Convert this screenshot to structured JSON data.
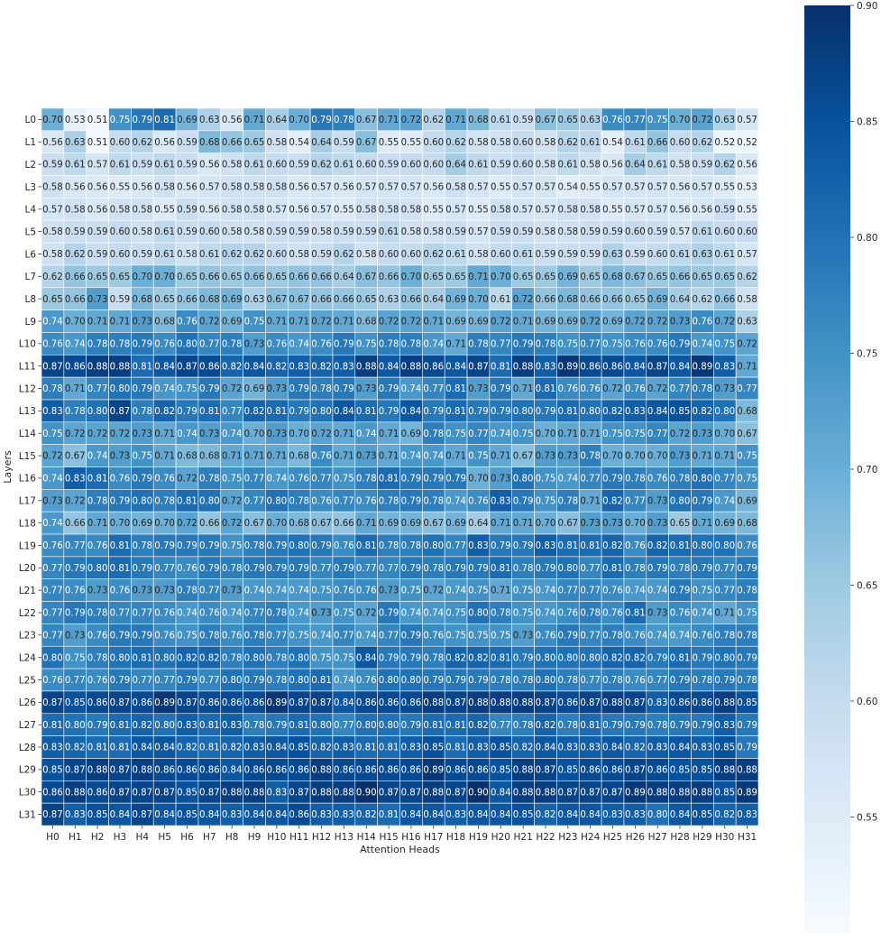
{
  "chart_data": {
    "type": "heatmap",
    "title": "",
    "xlabel": "Attention Heads",
    "ylabel": "Layers",
    "x_categories": [
      "H0",
      "H1",
      "H2",
      "H3",
      "H4",
      "H5",
      "H6",
      "H7",
      "H8",
      "H9",
      "H10",
      "H11",
      "H12",
      "H13",
      "H14",
      "H15",
      "H16",
      "H17",
      "H18",
      "H19",
      "H20",
      "H21",
      "H22",
      "H23",
      "H24",
      "H25",
      "H26",
      "H27",
      "H28",
      "H29",
      "H30",
      "H31"
    ],
    "y_categories": [
      "L0",
      "L1",
      "L2",
      "L3",
      "L4",
      "L5",
      "L6",
      "L7",
      "L8",
      "L9",
      "L10",
      "L11",
      "L12",
      "L13",
      "L14",
      "L15",
      "L16",
      "L17",
      "L18",
      "L19",
      "L20",
      "L21",
      "L22",
      "L23",
      "L24",
      "L25",
      "L26",
      "L27",
      "L28",
      "L29",
      "L30",
      "L31"
    ],
    "values": [
      [
        0.7,
        0.53,
        0.51,
        0.75,
        0.79,
        0.81,
        0.69,
        0.63,
        0.56,
        0.71,
        0.64,
        0.7,
        0.79,
        0.78,
        0.67,
        0.71,
        0.72,
        0.62,
        0.71,
        0.68,
        0.61,
        0.59,
        0.67,
        0.65,
        0.63,
        0.76,
        0.77,
        0.75,
        0.7,
        0.72,
        0.63,
        0.57
      ],
      [
        0.56,
        0.63,
        0.51,
        0.6,
        0.62,
        0.56,
        0.59,
        0.68,
        0.66,
        0.65,
        0.58,
        0.54,
        0.64,
        0.59,
        0.67,
        0.55,
        0.55,
        0.6,
        0.62,
        0.58,
        0.58,
        0.6,
        0.58,
        0.62,
        0.61,
        0.54,
        0.61,
        0.66,
        0.6,
        0.62,
        0.52,
        0.52
      ],
      [
        0.59,
        0.61,
        0.57,
        0.61,
        0.59,
        0.61,
        0.59,
        0.56,
        0.58,
        0.61,
        0.6,
        0.59,
        0.62,
        0.61,
        0.6,
        0.59,
        0.6,
        0.6,
        0.64,
        0.61,
        0.59,
        0.6,
        0.58,
        0.61,
        0.58,
        0.56,
        0.64,
        0.61,
        0.58,
        0.59,
        0.62,
        0.56
      ],
      [
        0.58,
        0.56,
        0.56,
        0.55,
        0.56,
        0.58,
        0.56,
        0.57,
        0.58,
        0.58,
        0.58,
        0.56,
        0.57,
        0.56,
        0.57,
        0.57,
        0.57,
        0.56,
        0.58,
        0.57,
        0.55,
        0.57,
        0.57,
        0.54,
        0.55,
        0.57,
        0.57,
        0.57,
        0.56,
        0.57,
        0.55,
        0.53
      ],
      [
        0.57,
        0.58,
        0.56,
        0.58,
        0.58,
        0.55,
        0.59,
        0.56,
        0.58,
        0.58,
        0.57,
        0.56,
        0.57,
        0.55,
        0.58,
        0.58,
        0.58,
        0.55,
        0.57,
        0.55,
        0.58,
        0.57,
        0.57,
        0.58,
        0.58,
        0.55,
        0.57,
        0.57,
        0.56,
        0.56,
        0.59,
        0.55
      ],
      [
        0.58,
        0.59,
        0.59,
        0.6,
        0.58,
        0.61,
        0.59,
        0.6,
        0.58,
        0.58,
        0.59,
        0.59,
        0.58,
        0.59,
        0.59,
        0.61,
        0.58,
        0.58,
        0.59,
        0.57,
        0.59,
        0.59,
        0.58,
        0.58,
        0.59,
        0.59,
        0.6,
        0.59,
        0.57,
        0.61,
        0.6,
        0.6
      ],
      [
        0.58,
        0.62,
        0.59,
        0.6,
        0.59,
        0.61,
        0.58,
        0.61,
        0.62,
        0.62,
        0.6,
        0.58,
        0.59,
        0.62,
        0.58,
        0.6,
        0.6,
        0.62,
        0.61,
        0.58,
        0.6,
        0.61,
        0.59,
        0.59,
        0.59,
        0.63,
        0.59,
        0.6,
        0.61,
        0.63,
        0.61,
        0.57
      ],
      [
        0.62,
        0.66,
        0.65,
        0.65,
        0.7,
        0.7,
        0.65,
        0.66,
        0.65,
        0.66,
        0.65,
        0.66,
        0.66,
        0.64,
        0.67,
        0.66,
        0.7,
        0.65,
        0.65,
        0.71,
        0.7,
        0.65,
        0.65,
        0.69,
        0.65,
        0.68,
        0.67,
        0.65,
        0.66,
        0.65,
        0.65,
        0.62
      ],
      [
        0.65,
        0.66,
        0.73,
        0.59,
        0.68,
        0.65,
        0.66,
        0.68,
        0.69,
        0.63,
        0.67,
        0.67,
        0.66,
        0.66,
        0.65,
        0.63,
        0.66,
        0.64,
        0.69,
        0.7,
        0.61,
        0.72,
        0.66,
        0.68,
        0.66,
        0.66,
        0.65,
        0.69,
        0.64,
        0.62,
        0.66,
        0.58
      ],
      [
        0.74,
        0.7,
        0.71,
        0.71,
        0.73,
        0.68,
        0.76,
        0.72,
        0.69,
        0.75,
        0.71,
        0.71,
        0.72,
        0.71,
        0.68,
        0.72,
        0.72,
        0.71,
        0.69,
        0.69,
        0.72,
        0.71,
        0.69,
        0.69,
        0.72,
        0.69,
        0.72,
        0.72,
        0.73,
        0.76,
        0.72,
        0.63
      ],
      [
        0.76,
        0.74,
        0.78,
        0.78,
        0.79,
        0.76,
        0.8,
        0.77,
        0.78,
        0.73,
        0.76,
        0.74,
        0.76,
        0.79,
        0.75,
        0.78,
        0.78,
        0.74,
        0.71,
        0.78,
        0.77,
        0.79,
        0.78,
        0.75,
        0.77,
        0.75,
        0.76,
        0.76,
        0.79,
        0.74,
        0.75,
        0.72
      ],
      [
        0.87,
        0.86,
        0.88,
        0.88,
        0.81,
        0.84,
        0.87,
        0.86,
        0.82,
        0.84,
        0.82,
        0.83,
        0.82,
        0.83,
        0.88,
        0.84,
        0.88,
        0.86,
        0.84,
        0.87,
        0.81,
        0.88,
        0.83,
        0.89,
        0.86,
        0.86,
        0.84,
        0.87,
        0.84,
        0.89,
        0.83,
        0.71
      ],
      [
        0.78,
        0.71,
        0.77,
        0.8,
        0.79,
        0.74,
        0.75,
        0.79,
        0.72,
        0.69,
        0.73,
        0.79,
        0.78,
        0.79,
        0.73,
        0.79,
        0.74,
        0.77,
        0.81,
        0.73,
        0.79,
        0.71,
        0.81,
        0.76,
        0.76,
        0.72,
        0.76,
        0.72,
        0.77,
        0.78,
        0.73,
        0.77
      ],
      [
        0.83,
        0.78,
        0.8,
        0.87,
        0.78,
        0.82,
        0.79,
        0.81,
        0.77,
        0.82,
        0.81,
        0.79,
        0.8,
        0.84,
        0.81,
        0.79,
        0.84,
        0.79,
        0.81,
        0.79,
        0.79,
        0.8,
        0.79,
        0.81,
        0.8,
        0.82,
        0.83,
        0.84,
        0.85,
        0.82,
        0.8,
        0.68
      ],
      [
        0.75,
        0.72,
        0.72,
        0.72,
        0.73,
        0.71,
        0.74,
        0.73,
        0.74,
        0.7,
        0.73,
        0.7,
        0.72,
        0.71,
        0.74,
        0.71,
        0.69,
        0.78,
        0.75,
        0.77,
        0.74,
        0.75,
        0.7,
        0.71,
        0.71,
        0.75,
        0.75,
        0.77,
        0.72,
        0.73,
        0.7,
        0.67
      ],
      [
        0.72,
        0.67,
        0.74,
        0.73,
        0.75,
        0.71,
        0.68,
        0.68,
        0.71,
        0.71,
        0.71,
        0.68,
        0.76,
        0.71,
        0.73,
        0.71,
        0.74,
        0.74,
        0.71,
        0.75,
        0.71,
        0.67,
        0.73,
        0.73,
        0.78,
        0.7,
        0.7,
        0.7,
        0.73,
        0.71,
        0.71,
        0.75
      ],
      [
        0.74,
        0.83,
        0.81,
        0.76,
        0.79,
        0.76,
        0.72,
        0.78,
        0.75,
        0.77,
        0.74,
        0.76,
        0.77,
        0.75,
        0.78,
        0.81,
        0.79,
        0.79,
        0.79,
        0.7,
        0.73,
        0.8,
        0.75,
        0.74,
        0.77,
        0.79,
        0.78,
        0.76,
        0.78,
        0.8,
        0.77,
        0.75
      ],
      [
        0.73,
        0.72,
        0.78,
        0.79,
        0.8,
        0.78,
        0.81,
        0.8,
        0.72,
        0.77,
        0.8,
        0.78,
        0.76,
        0.77,
        0.76,
        0.78,
        0.79,
        0.78,
        0.74,
        0.76,
        0.83,
        0.79,
        0.75,
        0.78,
        0.71,
        0.82,
        0.77,
        0.73,
        0.8,
        0.79,
        0.74,
        0.69
      ],
      [
        0.74,
        0.66,
        0.71,
        0.7,
        0.69,
        0.7,
        0.72,
        0.66,
        0.72,
        0.67,
        0.7,
        0.68,
        0.67,
        0.66,
        0.71,
        0.69,
        0.69,
        0.67,
        0.69,
        0.64,
        0.71,
        0.71,
        0.7,
        0.67,
        0.73,
        0.73,
        0.7,
        0.73,
        0.65,
        0.71,
        0.69,
        0.68
      ],
      [
        0.76,
        0.77,
        0.76,
        0.81,
        0.78,
        0.79,
        0.79,
        0.79,
        0.75,
        0.78,
        0.79,
        0.8,
        0.79,
        0.76,
        0.81,
        0.78,
        0.78,
        0.8,
        0.77,
        0.83,
        0.79,
        0.79,
        0.83,
        0.81,
        0.81,
        0.82,
        0.76,
        0.82,
        0.81,
        0.8,
        0.8,
        0.76
      ],
      [
        0.77,
        0.79,
        0.8,
        0.81,
        0.79,
        0.77,
        0.76,
        0.79,
        0.78,
        0.79,
        0.79,
        0.79,
        0.77,
        0.79,
        0.77,
        0.77,
        0.79,
        0.78,
        0.79,
        0.79,
        0.81,
        0.78,
        0.79,
        0.8,
        0.77,
        0.81,
        0.78,
        0.79,
        0.78,
        0.79,
        0.77,
        0.79
      ],
      [
        0.77,
        0.76,
        0.73,
        0.76,
        0.73,
        0.73,
        0.78,
        0.77,
        0.73,
        0.74,
        0.74,
        0.74,
        0.75,
        0.76,
        0.76,
        0.73,
        0.75,
        0.72,
        0.74,
        0.75,
        0.71,
        0.75,
        0.74,
        0.77,
        0.77,
        0.76,
        0.74,
        0.74,
        0.79,
        0.75,
        0.77,
        0.78
      ],
      [
        0.77,
        0.79,
        0.78,
        0.77,
        0.77,
        0.76,
        0.74,
        0.76,
        0.74,
        0.77,
        0.78,
        0.74,
        0.73,
        0.75,
        0.72,
        0.79,
        0.74,
        0.74,
        0.75,
        0.8,
        0.78,
        0.75,
        0.74,
        0.76,
        0.78,
        0.76,
        0.81,
        0.73,
        0.76,
        0.74,
        0.71,
        0.75
      ],
      [
        0.77,
        0.73,
        0.76,
        0.79,
        0.79,
        0.76,
        0.75,
        0.78,
        0.76,
        0.78,
        0.77,
        0.75,
        0.74,
        0.77,
        0.74,
        0.77,
        0.79,
        0.76,
        0.75,
        0.75,
        0.75,
        0.73,
        0.76,
        0.79,
        0.77,
        0.78,
        0.76,
        0.74,
        0.74,
        0.76,
        0.78,
        0.78
      ],
      [
        0.8,
        0.75,
        0.78,
        0.8,
        0.81,
        0.8,
        0.82,
        0.82,
        0.78,
        0.8,
        0.78,
        0.8,
        0.75,
        0.75,
        0.84,
        0.79,
        0.79,
        0.78,
        0.82,
        0.82,
        0.81,
        0.79,
        0.8,
        0.8,
        0.8,
        0.82,
        0.82,
        0.79,
        0.81,
        0.79,
        0.8,
        0.79
      ],
      [
        0.76,
        0.77,
        0.76,
        0.79,
        0.77,
        0.77,
        0.79,
        0.77,
        0.8,
        0.79,
        0.78,
        0.8,
        0.81,
        0.74,
        0.76,
        0.8,
        0.8,
        0.79,
        0.79,
        0.79,
        0.78,
        0.78,
        0.8,
        0.78,
        0.77,
        0.78,
        0.76,
        0.77,
        0.79,
        0.78,
        0.79,
        0.78
      ],
      [
        0.87,
        0.85,
        0.86,
        0.87,
        0.86,
        0.89,
        0.87,
        0.86,
        0.86,
        0.86,
        0.89,
        0.87,
        0.87,
        0.84,
        0.86,
        0.86,
        0.86,
        0.88,
        0.87,
        0.88,
        0.88,
        0.88,
        0.87,
        0.86,
        0.87,
        0.88,
        0.87,
        0.83,
        0.86,
        0.86,
        0.88,
        0.85
      ],
      [
        0.81,
        0.8,
        0.79,
        0.81,
        0.82,
        0.8,
        0.83,
        0.81,
        0.83,
        0.78,
        0.79,
        0.81,
        0.8,
        0.77,
        0.8,
        0.8,
        0.79,
        0.81,
        0.81,
        0.82,
        0.77,
        0.78,
        0.82,
        0.78,
        0.81,
        0.79,
        0.79,
        0.78,
        0.79,
        0.79,
        0.83,
        0.79
      ],
      [
        0.83,
        0.82,
        0.81,
        0.81,
        0.84,
        0.84,
        0.82,
        0.81,
        0.82,
        0.83,
        0.84,
        0.85,
        0.82,
        0.83,
        0.81,
        0.81,
        0.83,
        0.85,
        0.81,
        0.83,
        0.85,
        0.82,
        0.84,
        0.83,
        0.83,
        0.84,
        0.82,
        0.83,
        0.84,
        0.83,
        0.85,
        0.79
      ],
      [
        0.85,
        0.87,
        0.88,
        0.87,
        0.88,
        0.86,
        0.86,
        0.86,
        0.84,
        0.86,
        0.86,
        0.86,
        0.88,
        0.86,
        0.86,
        0.86,
        0.86,
        0.89,
        0.86,
        0.86,
        0.85,
        0.88,
        0.87,
        0.85,
        0.86,
        0.86,
        0.87,
        0.86,
        0.85,
        0.85,
        0.88,
        0.88
      ],
      [
        0.86,
        0.88,
        0.86,
        0.87,
        0.87,
        0.87,
        0.85,
        0.87,
        0.88,
        0.88,
        0.83,
        0.87,
        0.88,
        0.88,
        0.9,
        0.87,
        0.87,
        0.88,
        0.87,
        0.9,
        0.84,
        0.88,
        0.88,
        0.87,
        0.87,
        0.87,
        0.89,
        0.88,
        0.88,
        0.88,
        0.85,
        0.89
      ],
      [
        0.87,
        0.83,
        0.85,
        0.84,
        0.87,
        0.84,
        0.85,
        0.84,
        0.83,
        0.84,
        0.84,
        0.86,
        0.83,
        0.83,
        0.82,
        0.81,
        0.84,
        0.84,
        0.83,
        0.84,
        0.84,
        0.85,
        0.82,
        0.84,
        0.84,
        0.83,
        0.83,
        0.8,
        0.84,
        0.85,
        0.82,
        0.83
      ]
    ],
    "colorbar": {
      "range": [
        0.5,
        0.9
      ],
      "ticks": [
        "0.55",
        "0.60",
        "0.65",
        "0.70",
        "0.75",
        "0.80",
        "0.85",
        "0.90"
      ],
      "colormap": "Blues"
    },
    "value_format": "2-decimal, leading zero stripped"
  }
}
